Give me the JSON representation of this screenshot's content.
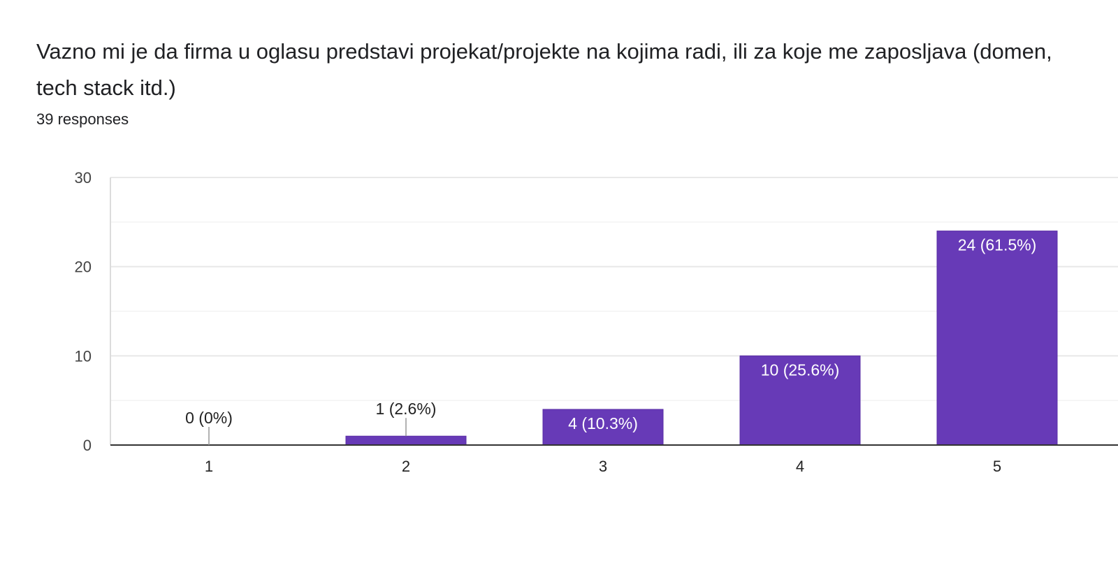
{
  "header": {
    "question": "Vazno mi je da firma u oglasu predstavi projekat/projekte na kojima radi, ili za koje me zaposljava (domen, tech stack itd.)",
    "responses": "39 responses"
  },
  "colors": {
    "bar": "#673ab7",
    "bar_stroke": "#5a2ea6",
    "grid": "#e8e8e8",
    "axis": "#333333",
    "leader": "#999999"
  },
  "chart_data": {
    "type": "bar",
    "categories": [
      "1",
      "2",
      "3",
      "4",
      "5"
    ],
    "values": [
      0,
      1,
      4,
      10,
      24
    ],
    "data_labels": [
      "0 (0%)",
      "1 (2.6%)",
      "4 (10.3%)",
      "10 (25.6%)",
      "24 (61.5%)"
    ],
    "yticks": [
      0,
      10,
      20,
      30
    ],
    "ylim": [
      0,
      30
    ],
    "grid": true,
    "legend": "none"
  }
}
